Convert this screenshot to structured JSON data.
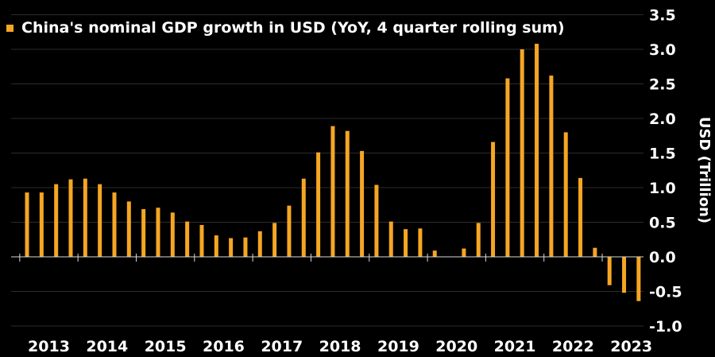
{
  "chart_data": {
    "type": "bar",
    "title": "",
    "xlabel": "",
    "ylabel": "USD (Trillion)",
    "ylim": [
      -1.0,
      3.5
    ],
    "y_ticks": [
      3.5,
      3.0,
      2.5,
      2.0,
      1.5,
      1.0,
      0.5,
      0.0,
      -0.5,
      -1.0
    ],
    "y_tick_labels": [
      "3.5",
      "3.0",
      "2.5",
      "2.0",
      "1.5",
      "1.0",
      "0.5",
      "0.0",
      "-0.5",
      "-1.0"
    ],
    "x_tick_labels": [
      "2013",
      "2014",
      "2015",
      "2016",
      "2017",
      "2018",
      "2019",
      "2020",
      "2021",
      "2022",
      "2023"
    ],
    "grid": true,
    "legend_position": "top-left",
    "color": "#f5a623",
    "series": [
      {
        "name": "China's nominal GDP growth in USD (YoY, 4 quarter rolling sum)",
        "quarters": [
          "2013 Q1",
          "2013 Q2",
          "2013 Q3",
          "2013 Q4",
          "2014 Q1",
          "2014 Q2",
          "2014 Q3",
          "2014 Q4",
          "2015 Q1",
          "2015 Q2",
          "2015 Q3",
          "2015 Q4",
          "2016 Q1",
          "2016 Q2",
          "2016 Q3",
          "2016 Q4",
          "2017 Q1",
          "2017 Q2",
          "2017 Q3",
          "2017 Q4",
          "2018 Q1",
          "2018 Q2",
          "2018 Q3",
          "2018 Q4",
          "2019 Q1",
          "2019 Q2",
          "2019 Q3",
          "2019 Q4",
          "2020 Q1",
          "2020 Q2",
          "2020 Q3",
          "2020 Q4",
          "2021 Q1",
          "2021 Q2",
          "2021 Q3",
          "2021 Q4",
          "2022 Q1",
          "2022 Q2",
          "2022 Q3",
          "2022 Q4",
          "2023 Q1",
          "2023 Q2",
          "2023 Q3"
        ],
        "values": [
          0.93,
          0.93,
          1.05,
          1.12,
          1.13,
          1.05,
          0.93,
          0.8,
          0.69,
          0.71,
          0.64,
          0.51,
          0.46,
          0.31,
          0.27,
          0.28,
          0.37,
          0.49,
          0.74,
          1.13,
          1.51,
          1.89,
          1.82,
          1.53,
          1.04,
          0.51,
          0.4,
          0.41,
          0.09,
          0.0,
          0.12,
          0.49,
          1.66,
          2.58,
          3.0,
          3.08,
          2.62,
          1.8,
          1.14,
          0.13,
          -0.41,
          -0.52,
          -0.64
        ]
      }
    ]
  }
}
